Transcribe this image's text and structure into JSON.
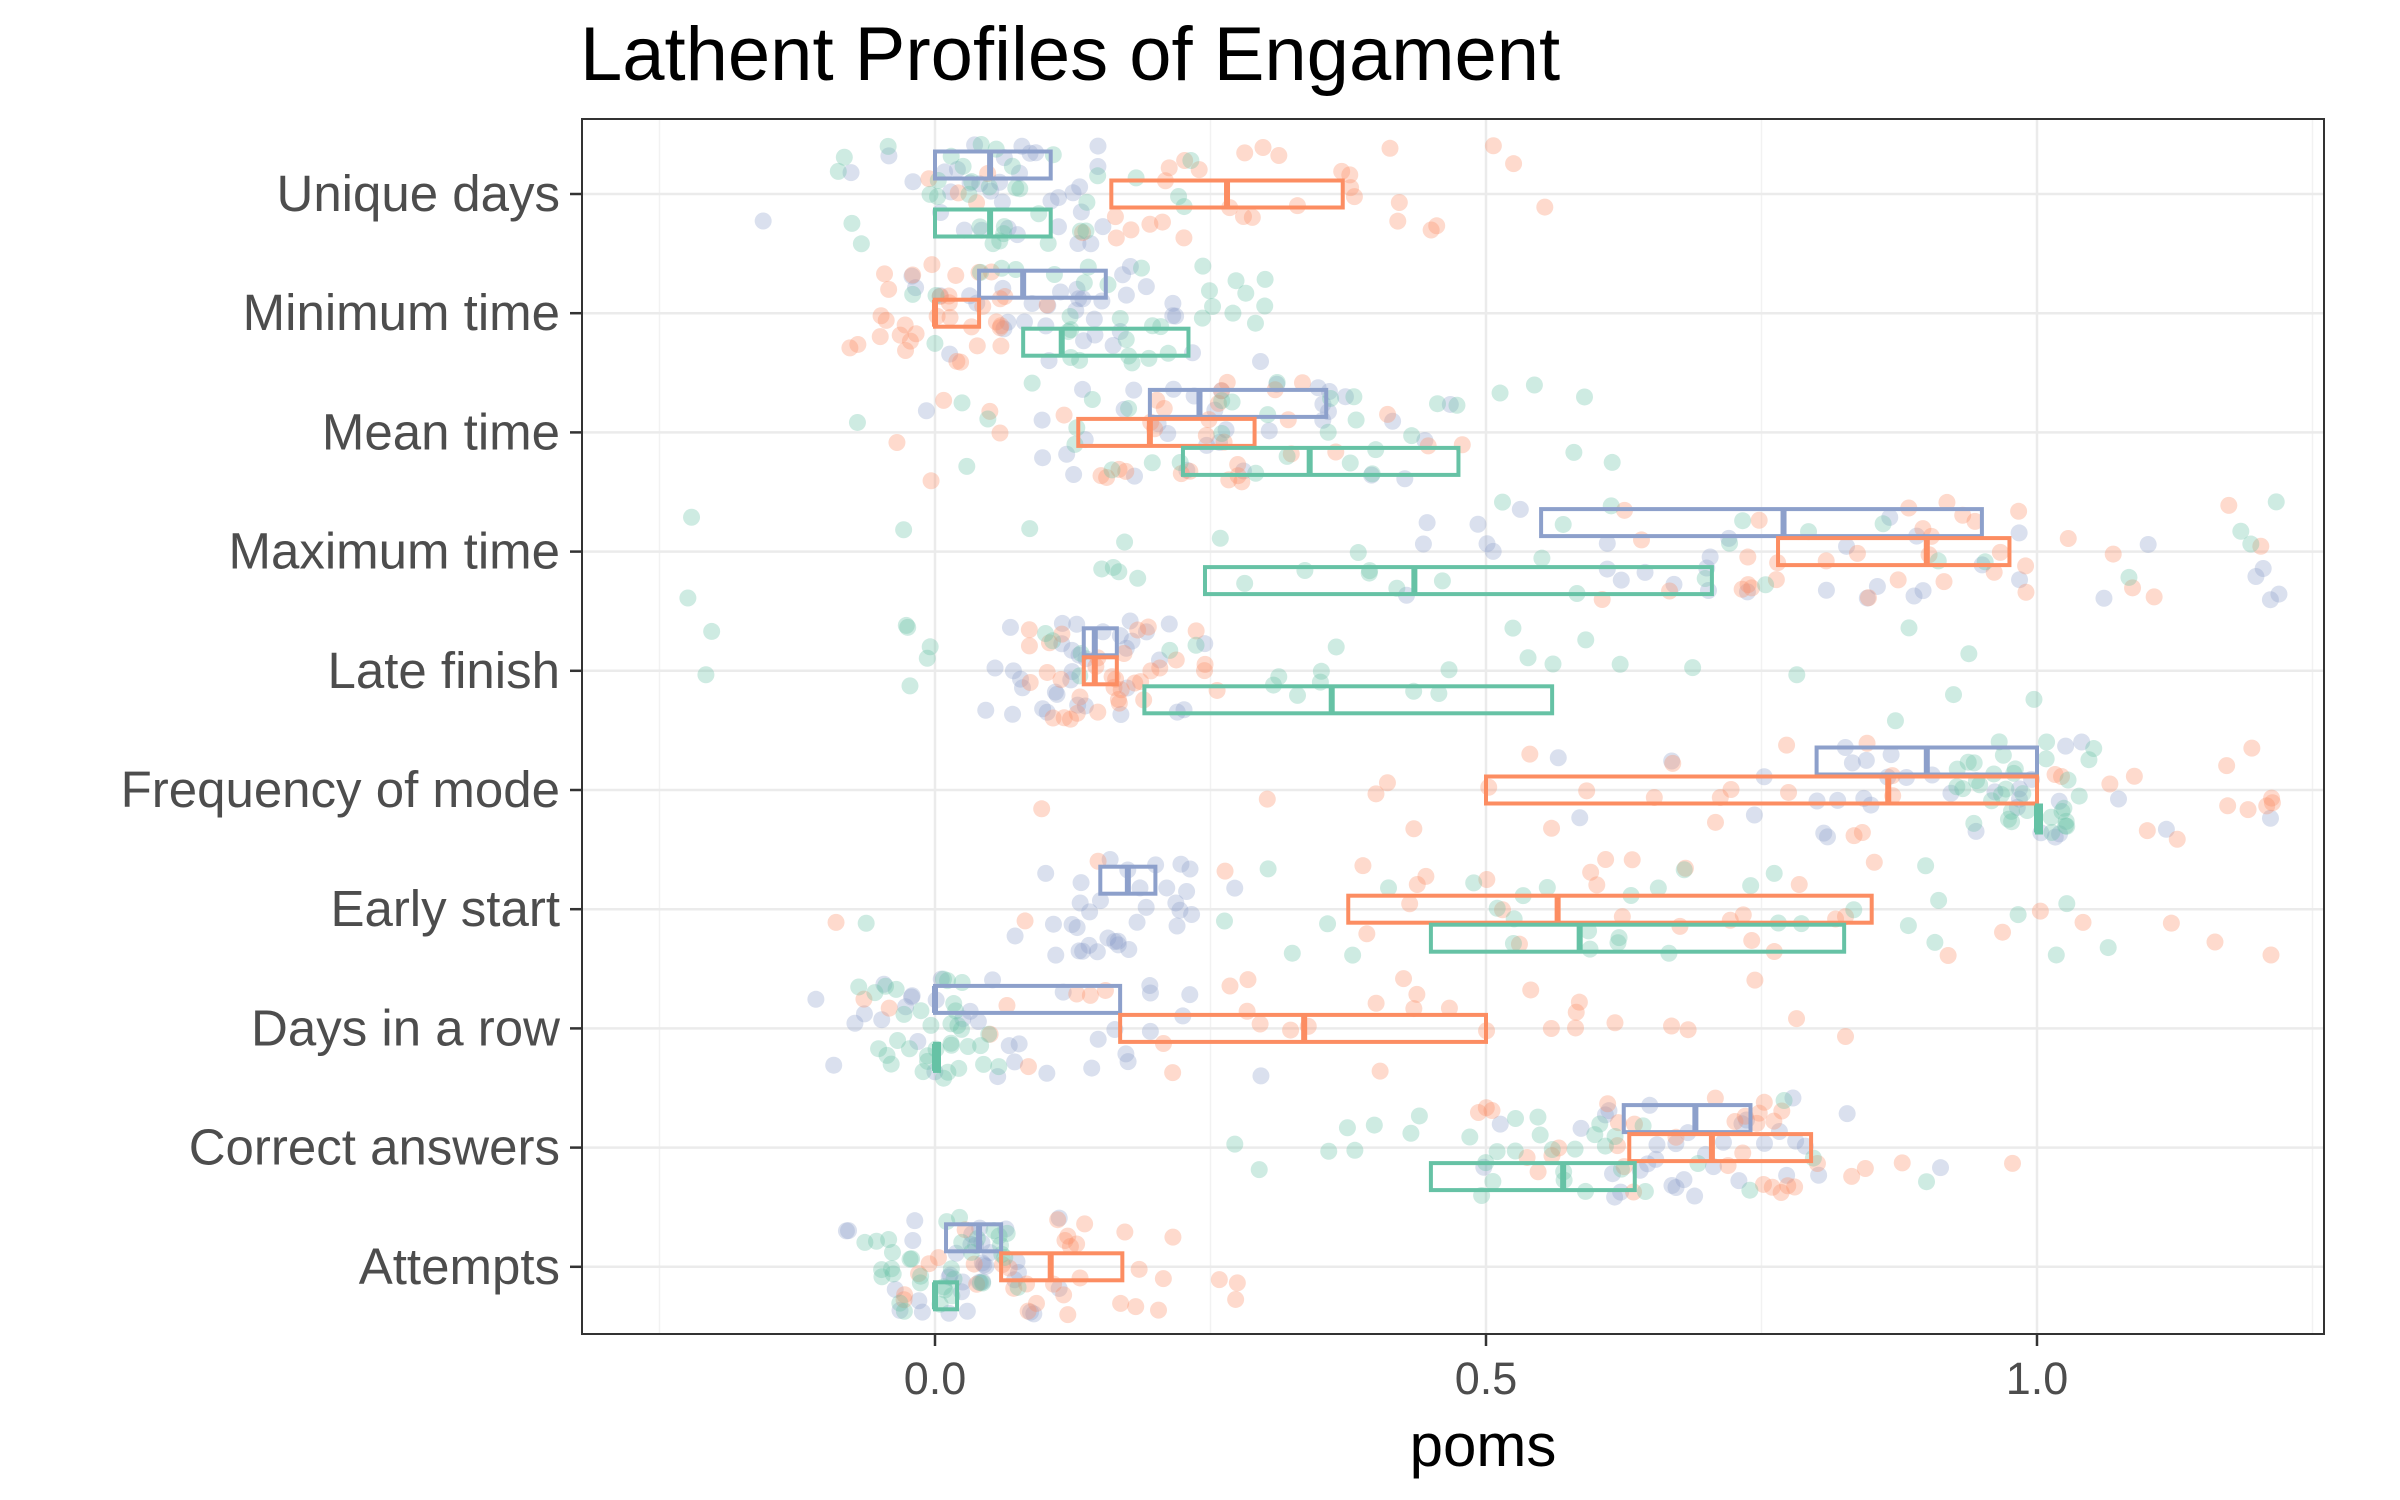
{
  "chart_data": {
    "type": "boxplot-jitter",
    "title": "Lathent Profiles of Engament",
    "xlabel": "poms",
    "ylabel": "",
    "xlim": [
      -0.25,
      1.25
    ],
    "xticks": [
      "0.0",
      "0.5",
      "1.0"
    ],
    "xtick_values": [
      0.0,
      0.5,
      1.0
    ],
    "grid": true,
    "legend": "none",
    "colors": {
      "green": "#66c2a5",
      "orange": "#fc8d62",
      "purple": "#8da0cb"
    },
    "categories": [
      "Unique days",
      "Minimum time",
      "Mean time",
      "Maximum time",
      "Late finish",
      "Frequency of mode",
      "Early start",
      "Days in a row",
      "Correct answers",
      "Attempts"
    ],
    "series": [
      {
        "color": "#8da0cb",
        "boxes": [
          {
            "q1": 0.0,
            "median": 0.05,
            "q3": 0.105
          },
          {
            "q1": 0.04,
            "median": 0.08,
            "q3": 0.155
          },
          {
            "q1": 0.195,
            "median": 0.24,
            "q3": 0.355
          },
          {
            "q1": 0.55,
            "median": 0.77,
            "q3": 0.95
          },
          {
            "q1": 0.135,
            "median": 0.145,
            "q3": 0.165
          },
          {
            "q1": 0.8,
            "median": 0.9,
            "q3": 1.0
          },
          {
            "q1": 0.15,
            "median": 0.175,
            "q3": 0.2
          },
          {
            "q1": 0.0,
            "median": 0.0,
            "q3": 0.168
          },
          {
            "q1": 0.625,
            "median": 0.69,
            "q3": 0.74
          },
          {
            "q1": 0.01,
            "median": 0.04,
            "q3": 0.06
          }
        ]
      },
      {
        "color": "#fc8d62",
        "boxes": [
          {
            "q1": 0.16,
            "median": 0.265,
            "q3": 0.37
          },
          {
            "q1": 0.0,
            "median": 0.0,
            "q3": 0.04
          },
          {
            "q1": 0.13,
            "median": 0.195,
            "q3": 0.29
          },
          {
            "q1": 0.765,
            "median": 0.9,
            "q3": 0.975
          },
          {
            "q1": 0.135,
            "median": 0.145,
            "q3": 0.165
          },
          {
            "q1": 0.5,
            "median": 0.865,
            "q3": 1.0
          },
          {
            "q1": 0.375,
            "median": 0.565,
            "q3": 0.85
          },
          {
            "q1": 0.168,
            "median": 0.335,
            "q3": 0.5
          },
          {
            "q1": 0.63,
            "median": 0.705,
            "q3": 0.795
          },
          {
            "q1": 0.06,
            "median": 0.105,
            "q3": 0.17
          }
        ]
      },
      {
        "color": "#66c2a5",
        "boxes": [
          {
            "q1": 0.0,
            "median": 0.05,
            "q3": 0.105
          },
          {
            "q1": 0.08,
            "median": 0.115,
            "q3": 0.23
          },
          {
            "q1": 0.225,
            "median": 0.34,
            "q3": 0.475
          },
          {
            "q1": 0.245,
            "median": 0.435,
            "q3": 0.705
          },
          {
            "q1": 0.19,
            "median": 0.36,
            "q3": 0.56
          },
          {
            "q1": 1.0,
            "median": 1.0,
            "q3": 1.0
          },
          {
            "q1": 0.45,
            "median": 0.585,
            "q3": 0.825
          },
          {
            "q1": 0.0,
            "median": 0.0,
            "q3": 0.0
          },
          {
            "q1": 0.45,
            "median": 0.57,
            "q3": 0.635
          },
          {
            "q1": 0.0,
            "median": 0.0,
            "q3": 0.02
          }
        ]
      }
    ]
  }
}
